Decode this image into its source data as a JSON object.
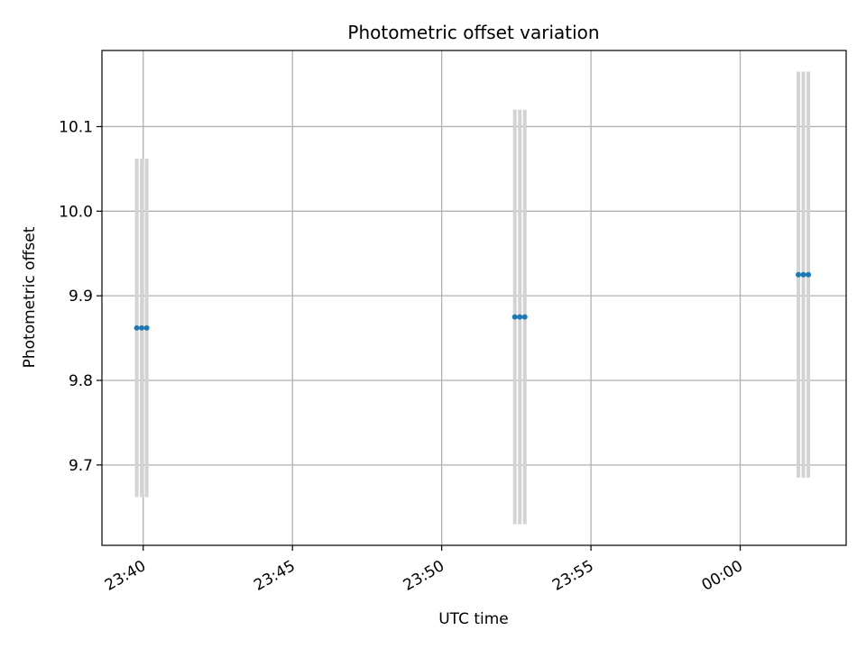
{
  "chart_data": {
    "type": "scatter",
    "title": "Photometric offset variation",
    "xlabel": "UTC time",
    "ylabel": "Photometric offset",
    "x_axis_kind": "time",
    "xlim": [
      "23:38:37",
      "00:03:33"
    ],
    "ylim": [
      9.605,
      10.19
    ],
    "x_ticks": [
      "23:40",
      "23:45",
      "23:50",
      "23:55",
      "00:00"
    ],
    "y_ticks": [
      9.7,
      9.8,
      9.9,
      10.0,
      10.1
    ],
    "grid": true,
    "legend": "none",
    "colors": {
      "marker": "#1f77b4",
      "errorbar": "#d3d3d3",
      "grid": "#b0b0b0"
    },
    "series": [
      {
        "points": [
          {
            "x": "23:39:47",
            "y": 9.862,
            "yerr": 0.2
          },
          {
            "x": "23:39:57",
            "y": 9.862,
            "yerr": 0.2
          },
          {
            "x": "23:40:07",
            "y": 9.862,
            "yerr": 0.2
          },
          {
            "x": "23:52:27",
            "y": 9.875,
            "yerr": 0.245
          },
          {
            "x": "23:52:37",
            "y": 9.875,
            "yerr": 0.245
          },
          {
            "x": "23:52:47",
            "y": 9.875,
            "yerr": 0.245
          },
          {
            "x": "00:01:57",
            "y": 9.925,
            "yerr": 0.24
          },
          {
            "x": "00:02:07",
            "y": 9.925,
            "yerr": 0.24
          },
          {
            "x": "00:02:17",
            "y": 9.925,
            "yerr": 0.24
          }
        ]
      }
    ]
  }
}
